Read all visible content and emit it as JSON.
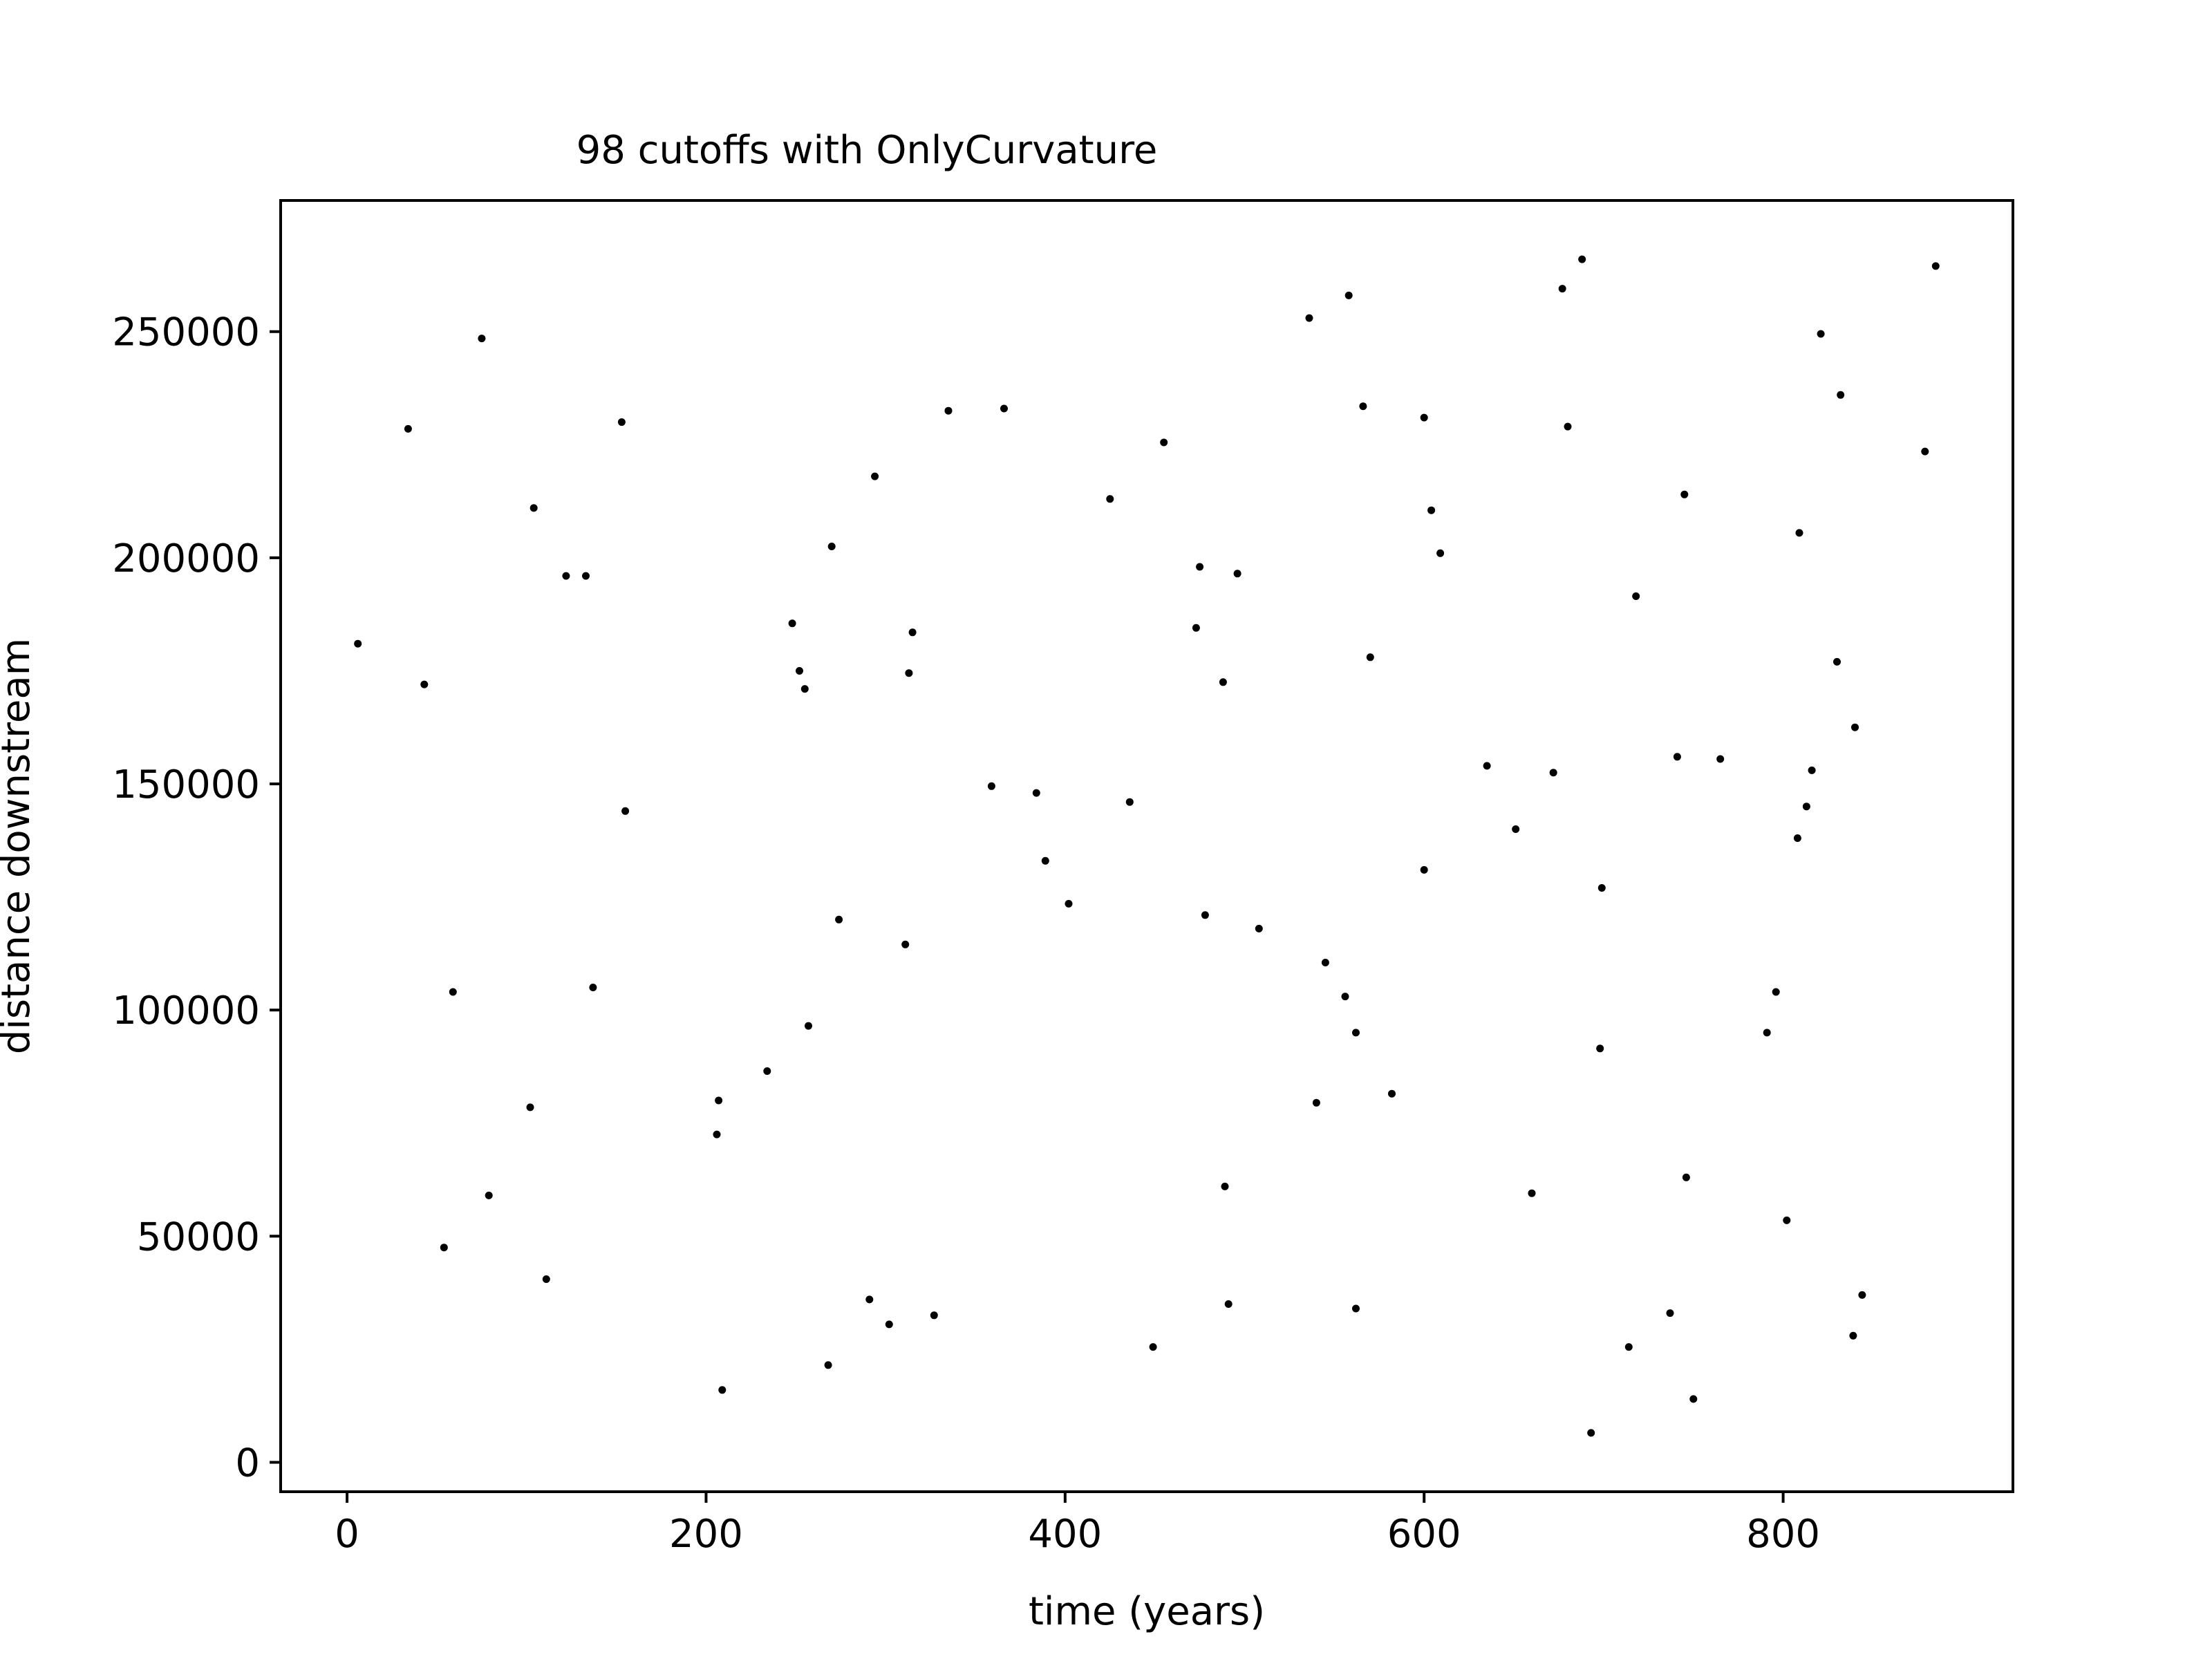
{
  "chart_data": {
    "type": "scatter",
    "title": "98 cutoffs with OnlyCurvature",
    "xlabel": "time (years)",
    "ylabel": "distance downstream",
    "xlim": [
      -37,
      928
    ],
    "ylim": [
      -6500,
      279000
    ],
    "xticks": [
      0,
      200,
      400,
      600,
      800
    ],
    "xtick_labels": [
      "0",
      "200",
      "400",
      "600",
      "800"
    ],
    "yticks": [
      0,
      50000,
      100000,
      150000,
      200000,
      250000
    ],
    "ytick_labels": [
      "0",
      "50000",
      "100000",
      "150000",
      "200000",
      "250000"
    ],
    "grid": false,
    "legend": "none",
    "marker_color": "#000000",
    "series": [
      {
        "points": [
          [
            6,
            181000
          ],
          [
            34,
            228500
          ],
          [
            43,
            172000
          ],
          [
            54,
            47500
          ],
          [
            59,
            104000
          ],
          [
            75,
            248500
          ],
          [
            79,
            59000
          ],
          [
            102,
            78500
          ],
          [
            104,
            211000
          ],
          [
            111,
            40500
          ],
          [
            122,
            196000
          ],
          [
            133,
            196000
          ],
          [
            137,
            105000
          ],
          [
            153,
            230000
          ],
          [
            155,
            144000
          ],
          [
            206,
            72500
          ],
          [
            207,
            80000
          ],
          [
            209,
            16000
          ],
          [
            234,
            86500
          ],
          [
            248,
            185500
          ],
          [
            252,
            175000
          ],
          [
            255,
            171000
          ],
          [
            257,
            96500
          ],
          [
            268,
            21500
          ],
          [
            270,
            202500
          ],
          [
            274,
            120000
          ],
          [
            291,
            36000
          ],
          [
            294,
            218000
          ],
          [
            302,
            30500
          ],
          [
            311,
            114500
          ],
          [
            313,
            174500
          ],
          [
            315,
            183500
          ],
          [
            327,
            32500
          ],
          [
            335,
            232500
          ],
          [
            359,
            149500
          ],
          [
            366,
            233000
          ],
          [
            384,
            148000
          ],
          [
            389,
            133000
          ],
          [
            402,
            123500
          ],
          [
            425,
            213000
          ],
          [
            436,
            146000
          ],
          [
            449,
            25500
          ],
          [
            455,
            225500
          ],
          [
            473,
            184500
          ],
          [
            475,
            198000
          ],
          [
            478,
            121000
          ],
          [
            488,
            172500
          ],
          [
            489,
            61000
          ],
          [
            491,
            35000
          ],
          [
            496,
            196500
          ],
          [
            508,
            118000
          ],
          [
            536,
            253000
          ],
          [
            540,
            79500
          ],
          [
            545,
            110500
          ],
          [
            556,
            103000
          ],
          [
            558,
            258000
          ],
          [
            562,
            34000
          ],
          [
            562,
            95000
          ],
          [
            566,
            233500
          ],
          [
            570,
            178000
          ],
          [
            582,
            81500
          ],
          [
            600,
            231000
          ],
          [
            600,
            131000
          ],
          [
            604,
            210500
          ],
          [
            609,
            201000
          ],
          [
            635,
            154000
          ],
          [
            651,
            140000
          ],
          [
            660,
            59500
          ],
          [
            672,
            152500
          ],
          [
            677,
            259500
          ],
          [
            680,
            229000
          ],
          [
            688,
            266000
          ],
          [
            693,
            6500
          ],
          [
            698,
            91500
          ],
          [
            699,
            127000
          ],
          [
            714,
            25500
          ],
          [
            718,
            191500
          ],
          [
            737,
            33000
          ],
          [
            741,
            156000
          ],
          [
            745,
            214000
          ],
          [
            746,
            63000
          ],
          [
            750,
            14000
          ],
          [
            765,
            155500
          ],
          [
            791,
            95000
          ],
          [
            796,
            104000
          ],
          [
            802,
            53500
          ],
          [
            808,
            138000
          ],
          [
            809,
            205500
          ],
          [
            813,
            145000
          ],
          [
            816,
            153000
          ],
          [
            821,
            249500
          ],
          [
            830,
            177000
          ],
          [
            832,
            236000
          ],
          [
            839,
            28000
          ],
          [
            840,
            162500
          ],
          [
            844,
            37000
          ],
          [
            879,
            223500
          ],
          [
            885,
            264500
          ]
        ]
      }
    ]
  }
}
